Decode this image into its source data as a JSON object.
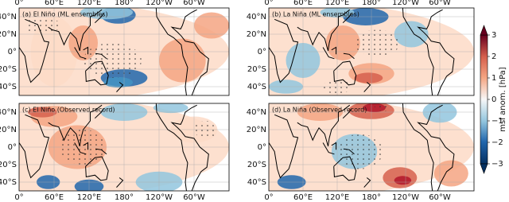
{
  "panels": [
    {
      "title": "(a) El Niño (ML ensembles)"
    },
    {
      "title": "(b) La Niña (ML ensembles)"
    },
    {
      "title": "(c) El Niño (Observed record)"
    },
    {
      "title": "(d) La Niña (Observed record)"
    }
  ],
  "lon_ticks": [
    "0°",
    "60°E",
    "120°E",
    "180°",
    "120°W",
    "60°W"
  ],
  "lat_ticks": [
    "40°N",
    "20°N",
    "0°",
    "20°S",
    "40°S"
  ],
  "colorbar": {
    "label": "msl anom. [hPa]",
    "lim": [
      -3,
      3
    ],
    "ticks": [
      {
        "value": 3,
        "label": "3"
      },
      {
        "value": 2,
        "label": "2"
      },
      {
        "value": 1,
        "label": "1"
      },
      {
        "value": 0,
        "label": "0"
      },
      {
        "value": -1,
        "label": "−1"
      },
      {
        "value": -2,
        "label": "−2"
      },
      {
        "value": -3,
        "label": "−3"
      }
    ]
  }
}
